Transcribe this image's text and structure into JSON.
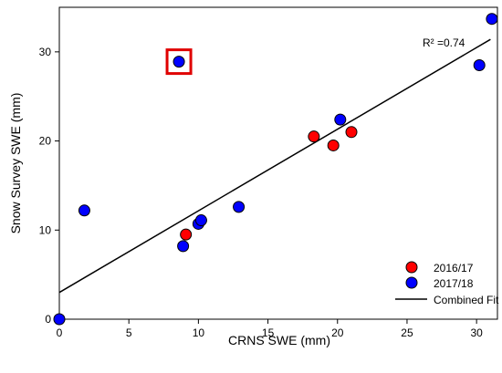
{
  "chart_data": {
    "type": "scatter",
    "xlabel": "CRNS SWE (mm)",
    "ylabel": "Snow Survey SWE (mm)",
    "xlim": [
      0,
      31.5
    ],
    "ylim": [
      0,
      35
    ],
    "xticks": [
      0,
      5,
      10,
      15,
      20,
      25,
      30
    ],
    "yticks": [
      0,
      10,
      20,
      30
    ],
    "grid": false,
    "legend_position": "bottom-right",
    "annotation": "R² =0.74",
    "series": [
      {
        "name": "2016/17",
        "color": "#ff0000",
        "points": [
          {
            "x": 9.1,
            "y": 9.5
          },
          {
            "x": 18.3,
            "y": 20.5
          },
          {
            "x": 19.7,
            "y": 19.5
          },
          {
            "x": 21.0,
            "y": 21.0
          }
        ]
      },
      {
        "name": "2017/18",
        "color": "#0000ff",
        "points": [
          {
            "x": 0.0,
            "y": 0.0
          },
          {
            "x": 1.8,
            "y": 12.2
          },
          {
            "x": 8.6,
            "y": 28.9
          },
          {
            "x": 8.9,
            "y": 8.2
          },
          {
            "x": 10.0,
            "y": 10.7
          },
          {
            "x": 10.2,
            "y": 11.1
          },
          {
            "x": 12.9,
            "y": 12.6
          },
          {
            "x": 20.2,
            "y": 22.4
          },
          {
            "x": 30.2,
            "y": 28.5
          },
          {
            "x": 31.1,
            "y": 33.7
          }
        ]
      }
    ],
    "fit": {
      "name": "Combined Fit",
      "color": "#000000",
      "x": [
        0,
        31.0
      ],
      "y": [
        3.0,
        31.4
      ]
    },
    "highlight": {
      "x": 8.6,
      "y": 28.9,
      "color": "#e00000"
    }
  }
}
